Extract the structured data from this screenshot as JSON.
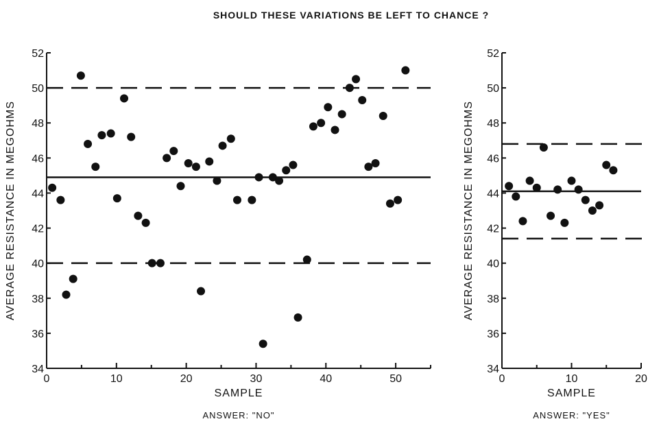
{
  "title": "SHOULD THESE VARIATIONS BE LEFT TO CHANCE ?",
  "chart_data": [
    {
      "type": "scatter",
      "xlabel": "SAMPLE",
      "ylabel": "AVERAGE RESISTANCE IN MEGOHMS",
      "answer": "ANSWER: \"NO\"",
      "xlim": [
        0,
        55
      ],
      "ylim": [
        34,
        52
      ],
      "xticks": [
        "0",
        "10",
        "20",
        "30",
        "40",
        "50"
      ],
      "yticks": [
        "34",
        "36",
        "38",
        "40",
        "42",
        "44",
        "46",
        "48",
        "50",
        "52"
      ],
      "center_line": 44.9,
      "upper_limit": 50.0,
      "lower_limit": 40.0,
      "grid": false,
      "points": [
        [
          0.8,
          44.3
        ],
        [
          2.0,
          43.6
        ],
        [
          2.8,
          38.2
        ],
        [
          3.8,
          39.1
        ],
        [
          4.9,
          50.7
        ],
        [
          5.9,
          46.8
        ],
        [
          7.0,
          45.5
        ],
        [
          7.9,
          47.3
        ],
        [
          9.2,
          47.4
        ],
        [
          10.1,
          43.7
        ],
        [
          11.1,
          49.4
        ],
        [
          12.1,
          47.2
        ],
        [
          13.1,
          42.7
        ],
        [
          14.2,
          42.3
        ],
        [
          15.1,
          40.0
        ],
        [
          16.3,
          40.0
        ],
        [
          17.2,
          46.0
        ],
        [
          18.2,
          46.4
        ],
        [
          19.2,
          44.4
        ],
        [
          20.3,
          45.7
        ],
        [
          21.4,
          45.5
        ],
        [
          22.1,
          38.4
        ],
        [
          23.3,
          45.8
        ],
        [
          24.4,
          44.7
        ],
        [
          25.2,
          46.7
        ],
        [
          26.4,
          47.1
        ],
        [
          27.3,
          43.6
        ],
        [
          29.4,
          43.6
        ],
        [
          30.4,
          44.9
        ],
        [
          31.0,
          35.4
        ],
        [
          32.4,
          44.9
        ],
        [
          33.3,
          44.7
        ],
        [
          34.3,
          45.3
        ],
        [
          35.3,
          45.6
        ],
        [
          36.0,
          36.9
        ],
        [
          37.3,
          40.2
        ],
        [
          38.2,
          47.8
        ],
        [
          39.3,
          48.0
        ],
        [
          40.3,
          48.9
        ],
        [
          41.3,
          47.6
        ],
        [
          42.3,
          48.5
        ],
        [
          43.4,
          50.0
        ],
        [
          44.3,
          50.5
        ],
        [
          45.2,
          49.3
        ],
        [
          46.1,
          45.5
        ],
        [
          47.1,
          45.7
        ],
        [
          48.2,
          48.4
        ],
        [
          49.2,
          43.4
        ],
        [
          50.3,
          43.6
        ],
        [
          51.4,
          51.0
        ]
      ]
    },
    {
      "type": "scatter",
      "xlabel": "SAMPLE",
      "ylabel": "AVERAGE RESISTANCE IN MEGOHMS",
      "answer": "ANSWER: \"YES\"",
      "xlim": [
        0,
        20
      ],
      "ylim": [
        34,
        52
      ],
      "xticks": [
        "0",
        "10",
        "20"
      ],
      "yticks": [
        "34",
        "36",
        "38",
        "40",
        "42",
        "44",
        "46",
        "48",
        "50",
        "52"
      ],
      "center_line": 44.1,
      "upper_limit": 46.8,
      "lower_limit": 41.4,
      "grid": false,
      "points": [
        [
          1.0,
          44.4
        ],
        [
          2.0,
          43.8
        ],
        [
          3.0,
          42.4
        ],
        [
          4.0,
          44.7
        ],
        [
          5.0,
          44.3
        ],
        [
          6.0,
          46.6
        ],
        [
          7.0,
          42.7
        ],
        [
          8.0,
          44.2
        ],
        [
          9.0,
          42.3
        ],
        [
          10.0,
          44.7
        ],
        [
          11.0,
          44.2
        ],
        [
          12.0,
          43.6
        ],
        [
          13.0,
          43.0
        ],
        [
          14.0,
          43.3
        ],
        [
          15.0,
          45.6
        ],
        [
          16.0,
          45.3
        ]
      ]
    }
  ]
}
